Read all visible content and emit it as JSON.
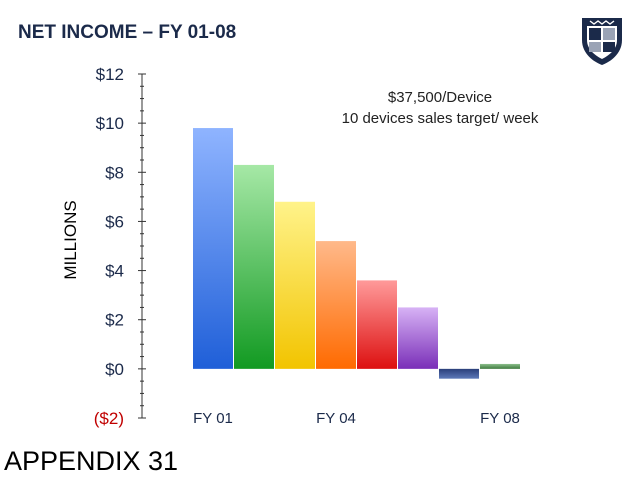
{
  "title": "NET INCOME – FY 01-08",
  "footer": "APPENDIX 31",
  "logo": {
    "icon": "university-shield-icon",
    "color": "#1b2a4a"
  },
  "annotations": [
    "$37,500/Device",
    "10 devices sales target/ week"
  ],
  "chart_data": {
    "type": "bar",
    "title": "",
    "xlabel": "",
    "ylabel": "MILLIONS",
    "ylim": [
      -2,
      12
    ],
    "grid": false,
    "legend": "none",
    "y_ticks": [
      {
        "value": 12,
        "label": "$12"
      },
      {
        "value": 10,
        "label": "$10"
      },
      {
        "value": 8,
        "label": "$8"
      },
      {
        "value": 6,
        "label": "$6"
      },
      {
        "value": 4,
        "label": "$4"
      },
      {
        "value": 2,
        "label": "$2"
      },
      {
        "value": 0,
        "label": "$0"
      },
      {
        "value": -2,
        "label": "($2)"
      }
    ],
    "x_tick_labels": [
      {
        "index": 0,
        "label": "FY 01"
      },
      {
        "index": 3,
        "label": "FY 04"
      },
      {
        "index": 7,
        "label": "FY 08"
      }
    ],
    "bars": [
      {
        "value": 9.8,
        "color_top": "#8fb4ff",
        "color_bottom": "#1f5fd8"
      },
      {
        "value": 8.3,
        "color_top": "#a6e8a6",
        "color_bottom": "#129a22"
      },
      {
        "value": 6.8,
        "color_top": "#fff38a",
        "color_bottom": "#f2c400"
      },
      {
        "value": 5.2,
        "color_top": "#ffb98a",
        "color_bottom": "#ff6a00"
      },
      {
        "value": 3.6,
        "color_top": "#ff9a9a",
        "color_bottom": "#dd1010"
      },
      {
        "value": 2.5,
        "color_top": "#d7b2f5",
        "color_bottom": "#7a2fb8"
      },
      {
        "value": -0.4,
        "color_top": "#5d79b8",
        "color_bottom": "#2a3f7a"
      },
      {
        "value": 0.2,
        "color_top": "#8cbf8c",
        "color_bottom": "#3e7a3e"
      }
    ],
    "negative_label_color": "#c00000",
    "label_color": "#1b2a4a"
  }
}
